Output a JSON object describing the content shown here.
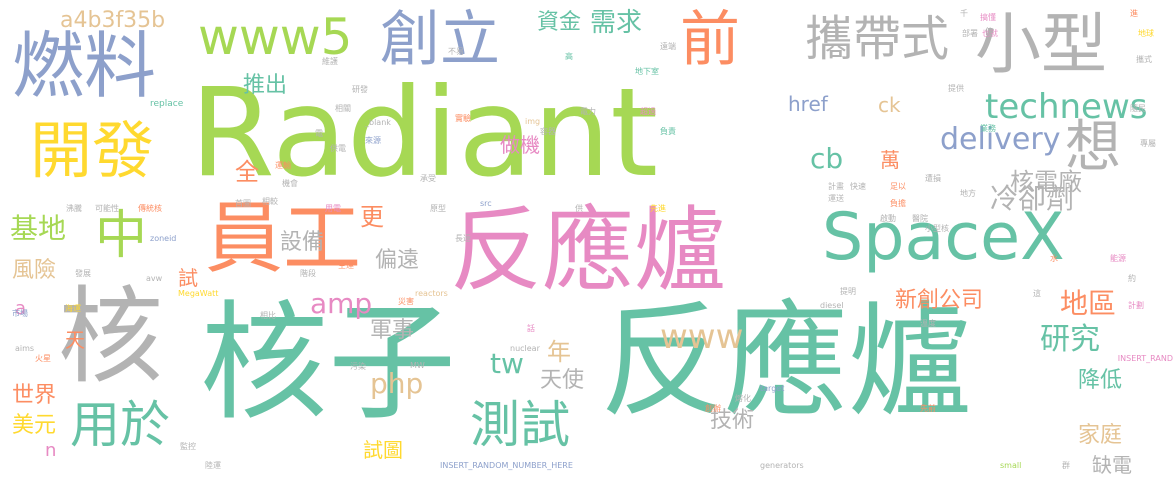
{
  "palette": {
    "green": "#66c2a5",
    "orange": "#fc8d62",
    "blue": "#8da0cb",
    "pink": "#e78ac3",
    "lime": "#a6d854",
    "yellow": "#ffd92f",
    "tan": "#e5c494",
    "gray": "#b3b3b3"
  },
  "words": [
    {
      "text": "Radiant",
      "weight": 100,
      "color": "lime"
    },
    {
      "text": "核子",
      "weight": 98,
      "color": "green"
    },
    {
      "text": "反應爐",
      "weight": 97,
      "color": "green"
    },
    {
      "text": "反應爐",
      "weight": 95,
      "color": "pink"
    },
    {
      "text": "核",
      "weight": 80,
      "color": "gray"
    },
    {
      "text": "燃料",
      "weight": 70,
      "color": "blue"
    },
    {
      "text": "員工",
      "weight": 68,
      "color": "orange"
    },
    {
      "text": "SpaceX",
      "weight": 66,
      "color": "green"
    },
    {
      "text": "開發",
      "weight": 60,
      "color": "yellow"
    },
    {
      "text": "小型",
      "weight": 58,
      "color": "gray"
    },
    {
      "text": "創立",
      "weight": 55,
      "color": "blue"
    },
    {
      "text": "前",
      "weight": 54,
      "color": "orange"
    },
    {
      "text": "攜帶式",
      "weight": 52,
      "color": "gray"
    },
    {
      "text": "www5",
      "weight": 50,
      "color": "lime"
    },
    {
      "text": "中",
      "weight": 50,
      "color": "lime"
    },
    {
      "text": "想",
      "weight": 48,
      "color": "gray"
    },
    {
      "text": "測試",
      "weight": 45,
      "color": "green"
    },
    {
      "text": "用於",
      "weight": 44,
      "color": "green"
    },
    {
      "text": "technews",
      "weight": 40,
      "color": "green"
    },
    {
      "text": "delivery",
      "weight": 36,
      "color": "blue"
    },
    {
      "text": "www",
      "weight": 35,
      "color": "tan"
    },
    {
      "text": "需求",
      "weight": 34,
      "color": "green"
    },
    {
      "text": "冷卻劑",
      "weight": 33,
      "color": "gray"
    },
    {
      "text": "a4b3f35b",
      "weight": 32,
      "color": "tan"
    },
    {
      "text": "基地",
      "weight": 32,
      "color": "lime"
    },
    {
      "text": "amp",
      "weight": 32,
      "color": "pink"
    },
    {
      "text": "tw",
      "weight": 32,
      "color": "green"
    },
    {
      "text": "php",
      "weight": 31,
      "color": "tan"
    },
    {
      "text": "cb",
      "weight": 31,
      "color": "green"
    },
    {
      "text": "資金",
      "weight": 30,
      "color": "green"
    },
    {
      "text": "推出",
      "weight": 30,
      "color": "green"
    },
    {
      "text": "風險",
      "weight": 30,
      "color": "tan"
    },
    {
      "text": "地區",
      "weight": 30,
      "color": "orange"
    },
    {
      "text": "研究",
      "weight": 30,
      "color": "green"
    },
    {
      "text": "軍事",
      "weight": 29,
      "color": "gray"
    },
    {
      "text": "降低",
      "weight": 29,
      "color": "green"
    },
    {
      "text": "家庭",
      "weight": 29,
      "color": "tan"
    },
    {
      "text": "年",
      "weight": 29,
      "color": "tan"
    },
    {
      "text": "偏遠",
      "weight": 28,
      "color": "gray"
    },
    {
      "text": "做機",
      "weight": 28,
      "color": "pink"
    },
    {
      "text": "href",
      "weight": 27,
      "color": "blue"
    },
    {
      "text": "ck",
      "weight": 27,
      "color": "tan"
    },
    {
      "text": "萬",
      "weight": 27,
      "color": "orange"
    },
    {
      "text": "核電廠",
      "weight": 27,
      "color": "gray"
    },
    {
      "text": "更",
      "weight": 27,
      "color": "orange"
    },
    {
      "text": "全",
      "weight": 27,
      "color": "orange"
    },
    {
      "text": "設備",
      "weight": 26,
      "color": "gray"
    },
    {
      "text": "新創公司",
      "weight": 26,
      "color": "orange"
    },
    {
      "text": "天使",
      "weight": 26,
      "color": "gray"
    },
    {
      "text": "技術",
      "weight": 25,
      "color": "gray"
    },
    {
      "text": "缺電",
      "weight": 25,
      "color": "gray"
    },
    {
      "text": "世界",
      "weight": 24,
      "color": "orange"
    },
    {
      "text": "美元",
      "weight": 24,
      "color": "yellow"
    },
    {
      "text": "試圖",
      "weight": 24,
      "color": "yellow"
    },
    {
      "text": "天",
      "weight": 22,
      "color": "orange"
    },
    {
      "text": "試",
      "weight": 22,
      "color": "orange"
    },
    {
      "text": "a",
      "weight": 22,
      "color": "pink"
    },
    {
      "text": "n",
      "weight": 22,
      "color": "pink"
    },
    {
      "text": "千",
      "weight": 10,
      "color": "gray"
    },
    {
      "text": "搞懂",
      "weight": 10,
      "color": "pink"
    },
    {
      "text": "也就",
      "weight": 10,
      "color": "pink"
    },
    {
      "text": "地球",
      "weight": 10,
      "color": "yellow"
    },
    {
      "text": "進",
      "weight": 10,
      "color": "orange"
    },
    {
      "text": "不易",
      "weight": 10,
      "color": "gray"
    },
    {
      "text": "部署",
      "weight": 10,
      "color": "gray"
    },
    {
      "text": "使",
      "weight": 10,
      "color": "gray"
    },
    {
      "text": "遠端",
      "weight": 10,
      "color": "gray"
    },
    {
      "text": "維護",
      "weight": 10,
      "color": "gray"
    },
    {
      "text": "高",
      "weight": 10,
      "color": "green"
    },
    {
      "text": "攜式",
      "weight": 10,
      "color": "gray"
    },
    {
      "text": "地下室",
      "weight": 10,
      "color": "green"
    },
    {
      "text": "研發",
      "weight": 10,
      "color": "gray"
    },
    {
      "text": "提供",
      "weight": 10,
      "color": "gray"
    },
    {
      "text": "replace",
      "weight": 10,
      "color": "green"
    },
    {
      "text": "相關",
      "weight": 10,
      "color": "gray"
    },
    {
      "text": "實驗",
      "weight": 10,
      "color": "orange"
    },
    {
      "text": "超過",
      "weight": 10,
      "color": "pink"
    },
    {
      "text": "電力",
      "weight": 10,
      "color": "gray"
    },
    {
      "text": "隨民",
      "weight": 10,
      "color": "gray"
    },
    {
      "text": "img",
      "weight": 10,
      "color": "tan"
    },
    {
      "text": "_blank",
      "weight": 10,
      "color": "gray"
    },
    {
      "text": "容器",
      "weight": 10,
      "color": "gray"
    },
    {
      "text": "電",
      "weight": 10,
      "color": "gray"
    },
    {
      "text": "來源",
      "weight": 10,
      "color": "blue"
    },
    {
      "text": "負責",
      "weight": 10,
      "color": "green"
    },
    {
      "text": "業務",
      "weight": 10,
      "color": "green"
    },
    {
      "text": "專屬",
      "weight": 10,
      "color": "gray"
    },
    {
      "text": "供電",
      "weight": 10,
      "color": "gray"
    },
    {
      "text": "運輸",
      "weight": 10,
      "color": "orange"
    },
    {
      "text": "機會",
      "weight": 10,
      "color": "gray"
    },
    {
      "text": "承受",
      "weight": 10,
      "color": "gray"
    },
    {
      "text": "遭損",
      "weight": 10,
      "color": "gray"
    },
    {
      "text": "計畫",
      "weight": 10,
      "color": "gray"
    },
    {
      "text": "快速",
      "weight": 10,
      "color": "gray"
    },
    {
      "text": "運送",
      "weight": 10,
      "color": "gray"
    },
    {
      "text": "足以",
      "weight": 10,
      "color": "orange"
    },
    {
      "text": "地方",
      "weight": 10,
      "color": "gray"
    },
    {
      "text": "沸騰",
      "weight": 10,
      "color": "gray"
    },
    {
      "text": "可能性",
      "weight": 10,
      "color": "gray"
    },
    {
      "text": "傳統核",
      "weight": 10,
      "color": "orange"
    },
    {
      "text": "首圖",
      "weight": 10,
      "color": "gray"
    },
    {
      "text": "相較",
      "weight": 10,
      "color": "gray"
    },
    {
      "text": "用電",
      "weight": 10,
      "color": "pink"
    },
    {
      "text": "原型",
      "weight": 10,
      "color": "gray"
    },
    {
      "text": "src",
      "weight": 10,
      "color": "blue"
    },
    {
      "text": "供",
      "weight": 10,
      "color": "gray"
    },
    {
      "text": "先進",
      "weight": 10,
      "color": "yellow"
    },
    {
      "text": "負擔",
      "weight": 10,
      "color": "orange"
    },
    {
      "text": "啟動",
      "weight": 10,
      "color": "gray"
    },
    {
      "text": "醫院",
      "weight": 10,
      "color": "gray"
    },
    {
      "text": "小型核",
      "weight": 10,
      "color": "gray"
    },
    {
      "text": "zoneid",
      "weight": 10,
      "color": "blue"
    },
    {
      "text": "長達",
      "weight": 10,
      "color": "gray"
    },
    {
      "text": "能源",
      "weight": 10,
      "color": "pink"
    },
    {
      "text": "水",
      "weight": 10,
      "color": "orange"
    },
    {
      "text": "約",
      "weight": 10,
      "color": "gray"
    },
    {
      "text": "發展",
      "weight": 10,
      "color": "gray"
    },
    {
      "text": "階段",
      "weight": 10,
      "color": "gray"
    },
    {
      "text": "空運",
      "weight": 10,
      "color": "orange"
    },
    {
      "text": "這",
      "weight": 10,
      "color": "gray"
    },
    {
      "text": "avw",
      "weight": 10,
      "color": "gray"
    },
    {
      "text": "reactors",
      "weight": 10,
      "color": "tan"
    },
    {
      "text": "災害",
      "weight": 10,
      "color": "orange"
    },
    {
      "text": "提明",
      "weight": 10,
      "color": "gray"
    },
    {
      "text": "diesel",
      "weight": 10,
      "color": "gray"
    },
    {
      "text": "計劃",
      "weight": 10,
      "color": "pink"
    },
    {
      "text": "市場",
      "weight": 10,
      "color": "blue"
    },
    {
      "text": "海運",
      "weight": 10,
      "color": "yellow"
    },
    {
      "text": "MegaWatt",
      "weight": 10,
      "color": "yellow"
    },
    {
      "text": "相比",
      "weight": 10,
      "color": "gray"
    },
    {
      "text": "aims",
      "weight": 10,
      "color": "gray"
    },
    {
      "text": "話",
      "weight": 10,
      "color": "pink"
    },
    {
      "text": "溫度",
      "weight": 10,
      "color": "gray"
    },
    {
      "text": "火星",
      "weight": 10,
      "color": "orange"
    },
    {
      "text": "nuclear",
      "weight": 10,
      "color": "gray"
    },
    {
      "text": "INSERT_RAND",
      "weight": 10,
      "color": "pink"
    },
    {
      "text": "污染",
      "weight": 10,
      "color": "gray"
    },
    {
      "text": "MW",
      "weight": 10,
      "color": "gray"
    },
    {
      "text": "target",
      "weight": 10,
      "color": "blue"
    },
    {
      "text": "熔化",
      "weight": 10,
      "color": "gray"
    },
    {
      "text": "先前",
      "weight": 10,
      "color": "orange"
    },
    {
      "text": "創辦",
      "weight": 10,
      "color": "orange"
    },
    {
      "text": "監控",
      "weight": 10,
      "color": "gray"
    },
    {
      "text": "INSERT_RANDOM_NUMBER_HERE",
      "weight": 10,
      "color": "blue"
    },
    {
      "text": "generators",
      "weight": 10,
      "color": "gray"
    },
    {
      "text": "small",
      "weight": 10,
      "color": "lime"
    },
    {
      "text": "群",
      "weight": 10,
      "color": "gray"
    },
    {
      "text": "陸運",
      "weight": 10,
      "color": "gray"
    }
  ]
}
